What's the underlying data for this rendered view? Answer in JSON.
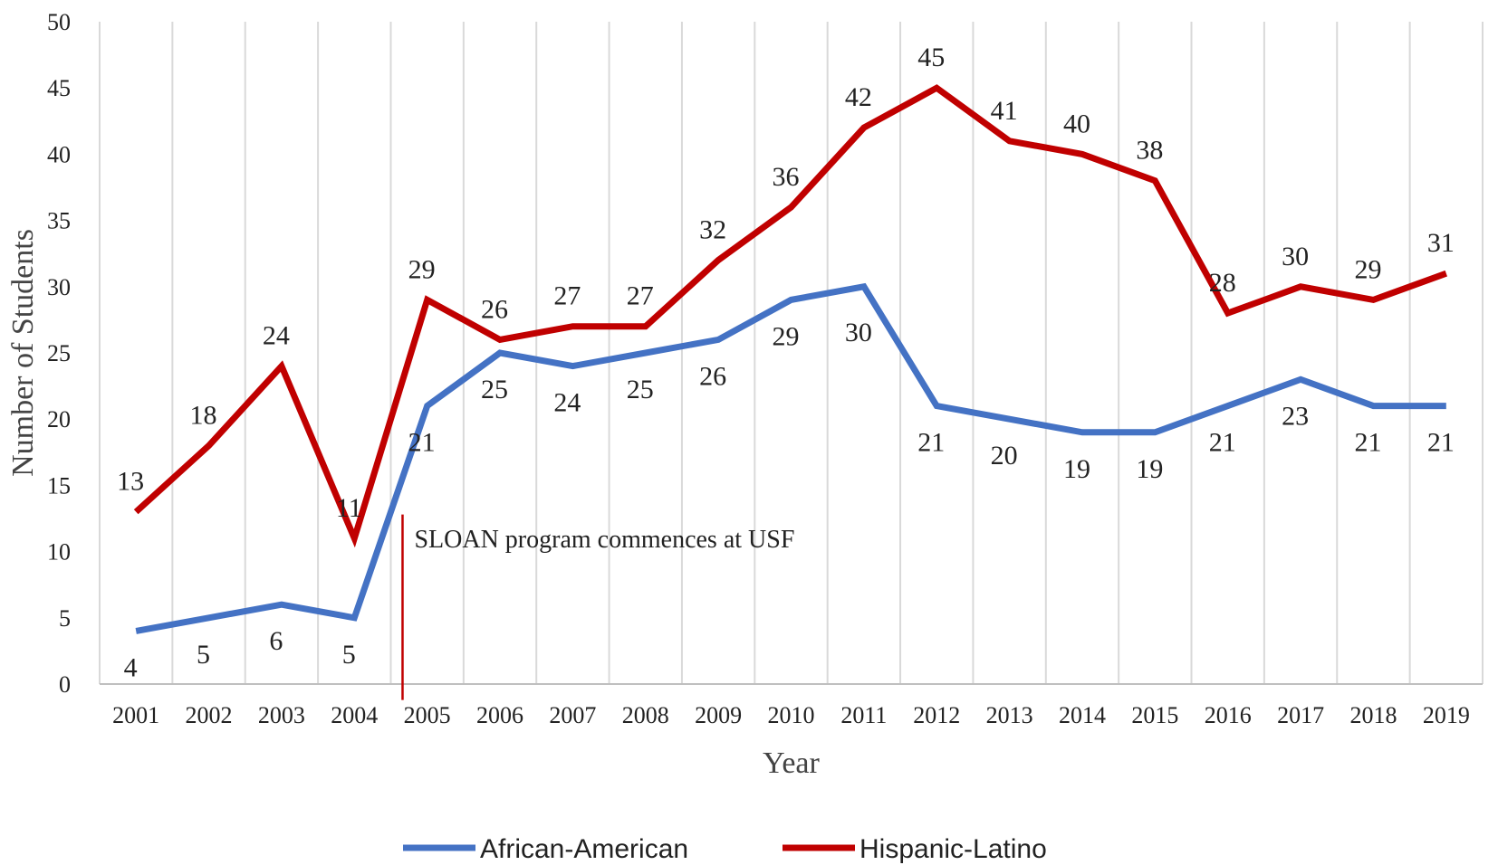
{
  "chart_data": {
    "type": "line",
    "title": "",
    "xlabel": "Year",
    "ylabel": "Number of Students",
    "ylim": [
      0,
      50
    ],
    "yticks": [
      0,
      5,
      10,
      15,
      20,
      25,
      30,
      35,
      40,
      45,
      50
    ],
    "categories": [
      "2001",
      "2002",
      "2003",
      "2004",
      "2005",
      "2006",
      "2007",
      "2008",
      "2009",
      "2010",
      "2011",
      "2012",
      "2013",
      "2014",
      "2015",
      "2016",
      "2017",
      "2018",
      "2019"
    ],
    "series": [
      {
        "name": "African-American",
        "color": "#4472C4",
        "values": [
          4,
          5,
          6,
          5,
          21,
          25,
          24,
          25,
          26,
          29,
          30,
          21,
          20,
          19,
          19,
          21,
          23,
          21,
          21
        ]
      },
      {
        "name": "Hispanic-Latino",
        "color": "#C00000",
        "values": [
          13,
          18,
          24,
          11,
          29,
          26,
          27,
          27,
          32,
          36,
          42,
          45,
          41,
          40,
          38,
          28,
          30,
          29,
          31
        ]
      }
    ],
    "annotation": {
      "text": "SLOAN program commences at USF",
      "year": "2005",
      "color": "#C00000"
    },
    "grid": "vertical",
    "legend": "bottom-center"
  }
}
